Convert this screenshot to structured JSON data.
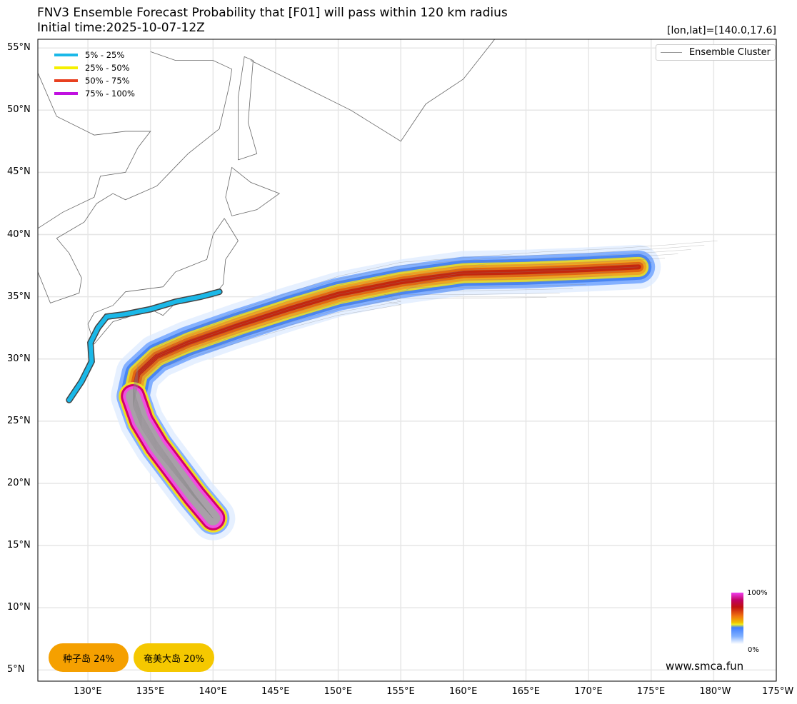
{
  "title": "FNV3 Ensemble Forecast Probability that [F01] will pass within 120 km radius",
  "subtitle": "Initial time:2025-10-07-12Z",
  "coord_readout": "[lon,lat]=[140.0,17.6]",
  "legend": [
    {
      "label": "5% - 25%",
      "color": "#1ab8e8"
    },
    {
      "label": "25% - 50%",
      "color": "#f5f000"
    },
    {
      "label": "50% - 75%",
      "color": "#e84020"
    },
    {
      "label": "75% - 100%",
      "color": "#c010e0"
    }
  ],
  "cluster_legend": "Ensemble Cluster",
  "colorbar": {
    "max_label": "100%",
    "min_label": "0%"
  },
  "badges": [
    {
      "label": "种子岛 24%",
      "color": "#f5a000"
    },
    {
      "label": "奄美大岛 20%",
      "color": "#f5c800"
    }
  ],
  "watermark": "www.smca.fun",
  "lon_ticks": [
    {
      "v": 130,
      "label": "130°E"
    },
    {
      "v": 135,
      "label": "135°E"
    },
    {
      "v": 140,
      "label": "140°E"
    },
    {
      "v": 145,
      "label": "145°E"
    },
    {
      "v": 150,
      "label": "150°E"
    },
    {
      "v": 155,
      "label": "155°E"
    },
    {
      "v": 160,
      "label": "160°E"
    },
    {
      "v": 165,
      "label": "165°E"
    },
    {
      "v": 170,
      "label": "170°E"
    },
    {
      "v": 175,
      "label": "175°E"
    },
    {
      "v": 180,
      "label": "180°W"
    },
    {
      "v": 185,
      "label": "175°W"
    }
  ],
  "lat_ticks": [
    {
      "v": 55,
      "label": "55°N"
    },
    {
      "v": 50,
      "label": "50°N"
    },
    {
      "v": 45,
      "label": "45°N"
    },
    {
      "v": 40,
      "label": "40°N"
    },
    {
      "v": 35,
      "label": "35°N"
    },
    {
      "v": 30,
      "label": "30°N"
    },
    {
      "v": 25,
      "label": "25°N"
    },
    {
      "v": 20,
      "label": "20°N"
    },
    {
      "v": 15,
      "label": "15°N"
    },
    {
      "v": 10,
      "label": "10°N"
    },
    {
      "v": 5,
      "label": "5°N"
    }
  ],
  "chart_data": {
    "type": "map",
    "extent": {
      "lon": [
        126,
        185
      ],
      "lat": [
        4.1,
        55.7
      ]
    },
    "track_centerline": [
      [
        140,
        17.2
      ],
      [
        138.5,
        19
      ],
      [
        137,
        21
      ],
      [
        135.5,
        23
      ],
      [
        134.3,
        25
      ],
      [
        133.6,
        27
      ],
      [
        134,
        28.8
      ],
      [
        135.5,
        30.2
      ],
      [
        138,
        31.3
      ],
      [
        142,
        32.7
      ],
      [
        146,
        34
      ],
      [
        150,
        35.2
      ],
      [
        155,
        36.2
      ],
      [
        160,
        36.9
      ],
      [
        165,
        37
      ],
      [
        170,
        37.2
      ],
      [
        174,
        37.4
      ]
    ],
    "alert_coast": [
      [
        128.5,
        26.7
      ],
      [
        129.5,
        28.2
      ],
      [
        130.3,
        29.8
      ],
      [
        130.2,
        31.3
      ],
      [
        130.8,
        32.5
      ],
      [
        131.5,
        33.4
      ],
      [
        133,
        33.6
      ],
      [
        135,
        34
      ],
      [
        137,
        34.6
      ],
      [
        139,
        35
      ],
      [
        140.5,
        35.4
      ]
    ]
  }
}
